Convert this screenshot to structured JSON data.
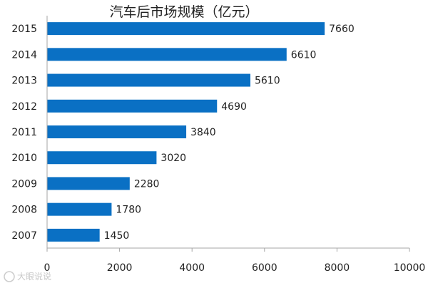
{
  "chart_data": {
    "type": "bar",
    "orientation": "horizontal",
    "title": "汽车后市场规模（亿元）",
    "categories": [
      "2015",
      "2014",
      "2013",
      "2012",
      "2011",
      "2010",
      "2009",
      "2008",
      "2007"
    ],
    "values": [
      7660,
      6610,
      5610,
      4690,
      3840,
      3020,
      2280,
      1780,
      1450
    ],
    "xlim": [
      0,
      10000
    ],
    "x_ticks": [
      0,
      2000,
      4000,
      6000,
      8000,
      10000
    ],
    "grid": false,
    "legend": "none",
    "bar_color": "#0a70c4"
  },
  "watermark": "大眼说说"
}
